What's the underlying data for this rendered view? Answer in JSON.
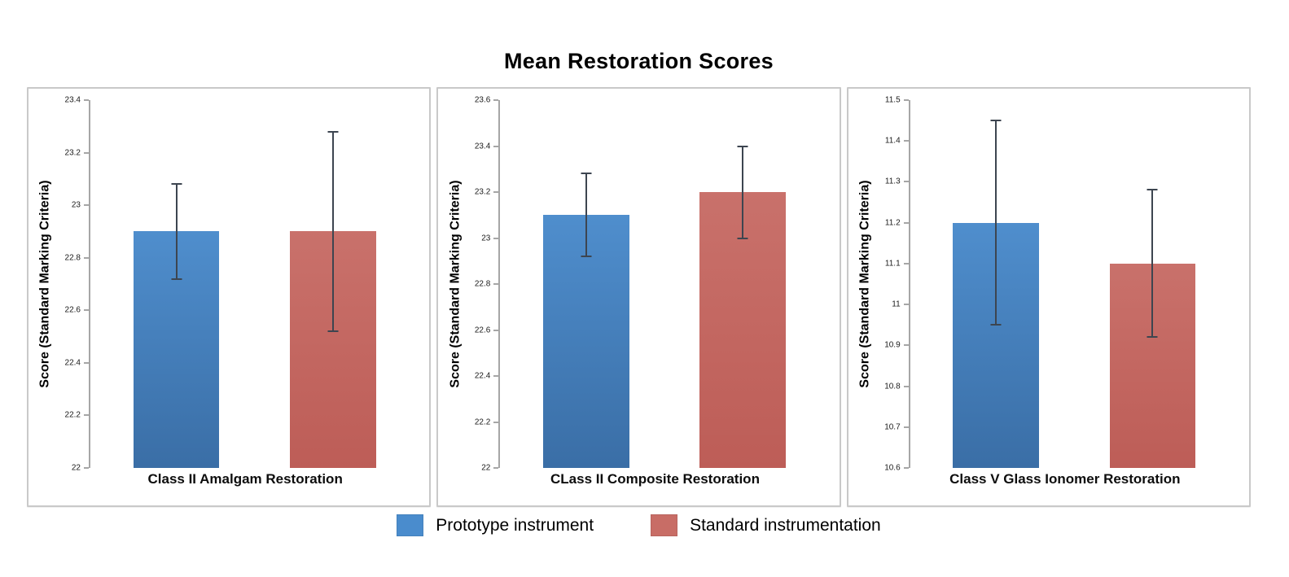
{
  "page": {
    "title": "Mean Restoration Scores"
  },
  "colors": {
    "axis": "#a6a6a6",
    "panel_border": "#c9c9c9",
    "error_bar": "#3d4550",
    "blue_top": "#4f8ecd",
    "blue_bottom": "#3a6ea6",
    "red_top": "#c9716b",
    "red_bottom": "#bd5d57"
  },
  "series_styles": [
    {
      "name": "Prototype instrument",
      "top": "#4f8ecd",
      "bottom": "#3a6ea6"
    },
    {
      "name": "Standard instrumentation",
      "top": "#c9716b",
      "bottom": "#bd5d57"
    }
  ],
  "legend": {
    "items": [
      {
        "label": "Prototype instrument",
        "color": "#4a8ccd"
      },
      {
        "label": "Standard instrumentation",
        "color": "#c86d66"
      }
    ]
  },
  "chart_data": [
    {
      "type": "bar",
      "category": "Class II Amalgam Restoration",
      "ylabel": "Score (Standard Marking Criteria)",
      "ylim": [
        22,
        23.4
      ],
      "ytick_step": 0.2,
      "ytick_labels": [
        "23.4",
        "23.2",
        "23",
        "22.8",
        "22.6",
        "22.4",
        "22.2",
        "22"
      ],
      "grid": false,
      "series": [
        {
          "name": "Prototype instrument",
          "value": 22.9,
          "error_low": 22.72,
          "error_high": 23.08
        },
        {
          "name": "Standard instrumentation",
          "value": 22.9,
          "error_low": 22.52,
          "error_high": 23.28
        }
      ]
    },
    {
      "type": "bar",
      "category": "CLass II Composite Restoration",
      "ylabel": "Score (Standard Marking Criteria)",
      "ylim": [
        22,
        23.6
      ],
      "ytick_step": 0.2,
      "ytick_labels": [
        "23.6",
        "23.4",
        "23.2",
        "23",
        "22.8",
        "22.6",
        "22.4",
        "22.2",
        "22"
      ],
      "grid": false,
      "series": [
        {
          "name": "Prototype instrument",
          "value": 23.1,
          "error_low": 22.92,
          "error_high": 23.28
        },
        {
          "name": "Standard instrumentation",
          "value": 23.2,
          "error_low": 23.0,
          "error_high": 23.4
        }
      ]
    },
    {
      "type": "bar",
      "category": "Class V Glass Ionomer Restoration",
      "ylabel": "Score (Standard Marking Criteria)",
      "ylim": [
        10.6,
        11.5
      ],
      "ytick_step": 0.1,
      "ytick_labels": [
        "11.5",
        "11.4",
        "11.3",
        "11.2",
        "11.1",
        "11",
        "10.9",
        "10.8",
        "10.7",
        "10.6"
      ],
      "grid": false,
      "series": [
        {
          "name": "Prototype instrument",
          "value": 11.2,
          "error_low": 10.95,
          "error_high": 11.45
        },
        {
          "name": "Standard instrumentation",
          "value": 11.1,
          "error_low": 10.92,
          "error_high": 11.28
        }
      ]
    }
  ]
}
